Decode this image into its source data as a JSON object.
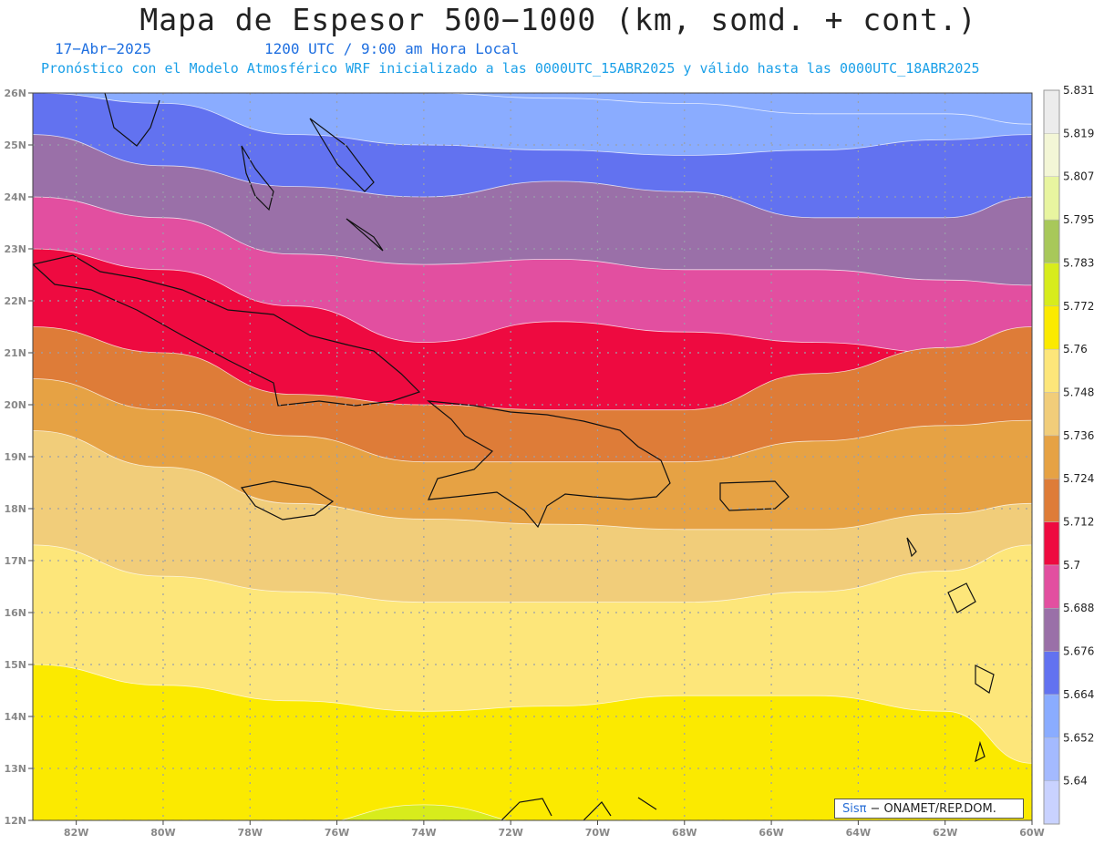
{
  "header": {
    "title": "Mapa de Espesor 500−1000 (km, somd. + cont.)",
    "date": "17−Abr−2025",
    "time": "1200 UTC / 9:00 am Hora Local",
    "subtitle": "Pronóstico con el Modelo Atmosférico WRF inicializado a las 0000UTC_15ABR2025 y válido hasta las  0000UTC_18ABR2025"
  },
  "credit": {
    "brand": "Sisπ",
    "text": "− ONAMET/REP.DOM."
  },
  "map": {
    "lon_range": [
      -83,
      -60
    ],
    "lat_range": [
      12,
      26
    ],
    "lat_ticks": [
      {
        "value": 12,
        "label": "12N"
      },
      {
        "value": 13,
        "label": "13N"
      },
      {
        "value": 14,
        "label": "14N"
      },
      {
        "value": 15,
        "label": "15N"
      },
      {
        "value": 16,
        "label": "16N"
      },
      {
        "value": 17,
        "label": "17N"
      },
      {
        "value": 18,
        "label": "18N"
      },
      {
        "value": 19,
        "label": "19N"
      },
      {
        "value": 20,
        "label": "20N"
      },
      {
        "value": 21,
        "label": "21N"
      },
      {
        "value": 22,
        "label": "22N"
      },
      {
        "value": 23,
        "label": "23N"
      },
      {
        "value": 24,
        "label": "24N"
      },
      {
        "value": 25,
        "label": "25N"
      },
      {
        "value": 26,
        "label": "26N"
      }
    ],
    "lon_ticks": [
      {
        "value": -82,
        "label": "82W"
      },
      {
        "value": -80,
        "label": "80W"
      },
      {
        "value": -78,
        "label": "78W"
      },
      {
        "value": -76,
        "label": "76W"
      },
      {
        "value": -74,
        "label": "74W"
      },
      {
        "value": -72,
        "label": "72W"
      },
      {
        "value": -70,
        "label": "70W"
      },
      {
        "value": -68,
        "label": "68W"
      },
      {
        "value": -66,
        "label": "66W"
      },
      {
        "value": -64,
        "label": "64W"
      },
      {
        "value": -62,
        "label": "62W"
      },
      {
        "value": -60,
        "label": "60W"
      }
    ],
    "band_boundary_lons": [
      -83,
      -80,
      -77,
      -74,
      -71,
      -68,
      -65,
      -62,
      -60
    ],
    "bands": [
      {
        "name": "band-5.640",
        "color": "#8aacff",
        "upper_lats": [
          26.2,
          26.2,
          26.2,
          26.2,
          26.2,
          26.2,
          26.2,
          26.2,
          26.2
        ]
      },
      {
        "name": "band-5.652",
        "color": "#8aacff",
        "upper_lats": [
          26,
          26,
          26,
          26,
          25.9,
          25.8,
          25.6,
          25.6,
          25.4
        ]
      },
      {
        "name": "band-5.664",
        "color": "#6272f0",
        "upper_lats": [
          26,
          25.8,
          25.2,
          25.0,
          24.9,
          24.8,
          24.9,
          25.1,
          25.2
        ]
      },
      {
        "name": "band-5.676",
        "color": "#9a70a8",
        "upper_lats": [
          25.2,
          24.6,
          24.2,
          24.0,
          24.3,
          24.1,
          23.6,
          23.6,
          24.0
        ]
      },
      {
        "name": "band-5.688",
        "color": "#e24fa0",
        "upper_lats": [
          24.0,
          23.6,
          22.9,
          22.7,
          22.8,
          22.6,
          22.6,
          22.4,
          22.3
        ]
      },
      {
        "name": "band-5.700",
        "color": "#ee0a40",
        "upper_lats": [
          23.0,
          22.6,
          21.9,
          21.2,
          21.6,
          21.4,
          21.2,
          21.0,
          21.2
        ]
      },
      {
        "name": "band-5.712",
        "color": "#de7c38",
        "upper_lats": [
          21.5,
          21.0,
          20.2,
          20.0,
          19.9,
          19.9,
          20.6,
          21.1,
          21.5
        ]
      },
      {
        "name": "band-5.724",
        "color": "#e6a244",
        "upper_lats": [
          20.5,
          19.9,
          19.4,
          18.9,
          18.9,
          18.9,
          19.3,
          19.6,
          19.7
        ]
      },
      {
        "name": "band-5.736",
        "color": "#f1cd7a",
        "upper_lats": [
          19.5,
          18.8,
          18.1,
          17.8,
          17.7,
          17.6,
          17.6,
          17.9,
          18.1
        ]
      },
      {
        "name": "band-5.748",
        "color": "#fde67a",
        "upper_lats": [
          17.3,
          16.7,
          16.4,
          16.2,
          16.2,
          16.2,
          16.4,
          16.8,
          17.3
        ]
      },
      {
        "name": "band-5.760",
        "color": "#fbea00",
        "upper_lats": [
          15.0,
          14.6,
          14.3,
          14.1,
          14.2,
          14.4,
          14.4,
          14.1,
          13.1
        ]
      },
      {
        "name": "band-5.772",
        "color": "#d7ec1c",
        "upper_lats": [
          12.0,
          12.0,
          11.9,
          12.3,
          11.9,
          11.9,
          11.9,
          11.9,
          11.9
        ]
      }
    ]
  },
  "colorbar": {
    "colors": [
      "#c9d2ff",
      "#a4baff",
      "#8aacff",
      "#6272f0",
      "#9a70a8",
      "#e24fa0",
      "#ee0a40",
      "#de7c38",
      "#e6a244",
      "#f1cd7a",
      "#fde67a",
      "#fbea00",
      "#d7ec1c",
      "#a8c85a",
      "#e8f5a0",
      "#f3f6d6",
      "#ececec"
    ],
    "labels": [
      "5.64",
      "5.652",
      "5.664",
      "5.676",
      "5.688",
      "5.7",
      "5.712",
      "5.724",
      "5.736",
      "5.748",
      "5.76",
      "5.772",
      "5.783",
      "5.795",
      "5.807",
      "5.819",
      "5.831"
    ]
  }
}
